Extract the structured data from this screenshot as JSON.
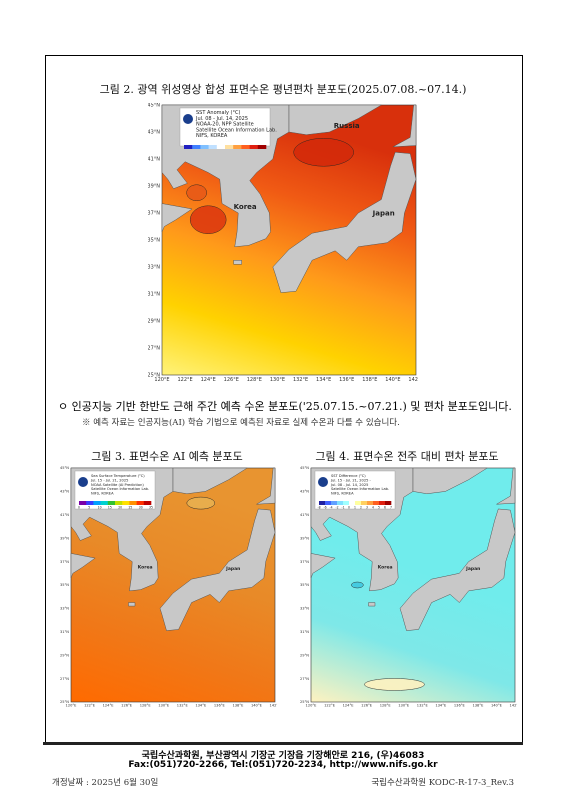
{
  "figure2": {
    "title": "그림 2. 광역 위성영상 합성 표면수온 평년편차 분포도(2025.07.08.~07.14.)",
    "legend": [
      "SST Anomaly (°C)",
      "Jul. 08 - Jul. 14, 2025",
      "NOAA-20, NPP Satellite",
      "Satellite Ocean Information Lab.",
      "NIFS, KOREA"
    ],
    "places": [
      "Russia",
      "Korea",
      "Japan"
    ],
    "lat_labels": [
      "45°N",
      "43°N",
      "41°N",
      "39°N",
      "37°N",
      "35°N",
      "33°N",
      "31°N",
      "29°N",
      "27°N",
      "25°N"
    ],
    "lon_labels": [
      "120°E",
      "122°E",
      "124°E",
      "126°E",
      "128°E",
      "130°E",
      "132°E",
      "134°E",
      "136°E",
      "138°E",
      "140°E",
      "142°E"
    ]
  },
  "bullet": "ㅇ 인공지능 기반 한반도 근해 주간 예측 수온 분포도('25.07.15.~07.21.) 및 편차 분포도입니다.",
  "note": "※ 예측 자료는 인공지능(AI) 학습 기법으로 예측된 자료로 실제 수온과 다를 수 있습니다.",
  "figure3": {
    "title": "그림 3. 표면수온 AI 예측 분포도",
    "legend": [
      "Sea Surface Temperature (°C)",
      "Jul. 15 - Jul. 21, 2025",
      "NOAA Satellite (AI Prediction)",
      "Satellite Ocean Information Lab.",
      "NIFS, KOREA"
    ],
    "scale": [
      "0",
      "5",
      "10",
      "15",
      "20",
      "25",
      "30",
      "35"
    ],
    "places": [
      "Korea",
      "Japan"
    ],
    "lat_labels": [
      "45°N",
      "43°N",
      "41°N",
      "39°N",
      "37°N",
      "35°N",
      "33°N",
      "31°N",
      "29°N",
      "27°N",
      "25°N"
    ],
    "lon_labels": [
      "120°E",
      "122°E",
      "124°E",
      "126°E",
      "128°E",
      "130°E",
      "132°E",
      "134°E",
      "136°E",
      "138°E",
      "140°E",
      "142°E"
    ]
  },
  "figure4": {
    "title": "그림 4. 표면수온 전주 대비 편차 분포도",
    "legend": [
      "SST Difference (°C)",
      "Jul. 15 - Jul. 21, 2025 -",
      "Jul. 08 - Jul. 14, 2025",
      "Satellite Ocean Information Lab.",
      "NIFS, KOREA"
    ],
    "scale": [
      "-8",
      "-6",
      "-4",
      "-2",
      "-1",
      "0",
      "1",
      "2",
      "3",
      "4",
      "5",
      "6",
      "7"
    ],
    "places": [
      "Korea",
      "Japan"
    ],
    "lat_labels": [
      "45°N",
      "43°N",
      "41°N",
      "39°N",
      "37°N",
      "35°N",
      "33°N",
      "31°N",
      "29°N",
      "27°N",
      "25°N"
    ],
    "lon_labels": [
      "120°E",
      "122°E",
      "124°E",
      "126°E",
      "128°E",
      "130°E",
      "132°E",
      "134°E",
      "136°E",
      "138°E",
      "140°E",
      "142°E"
    ]
  },
  "footer": {
    "line1": "국립수산과학원, 부산광역시 기장군 기장읍 기장해안로 216, (우)46083",
    "line2": "Fax:(051)720-2266, Tel:(051)720-2234, http://www.nifs.go.kr"
  },
  "revision_date": "개정날짜 : 2025년 6월 30일",
  "doc_code": "국립수산과학원 KODC-R-17-3_Rev.3"
}
